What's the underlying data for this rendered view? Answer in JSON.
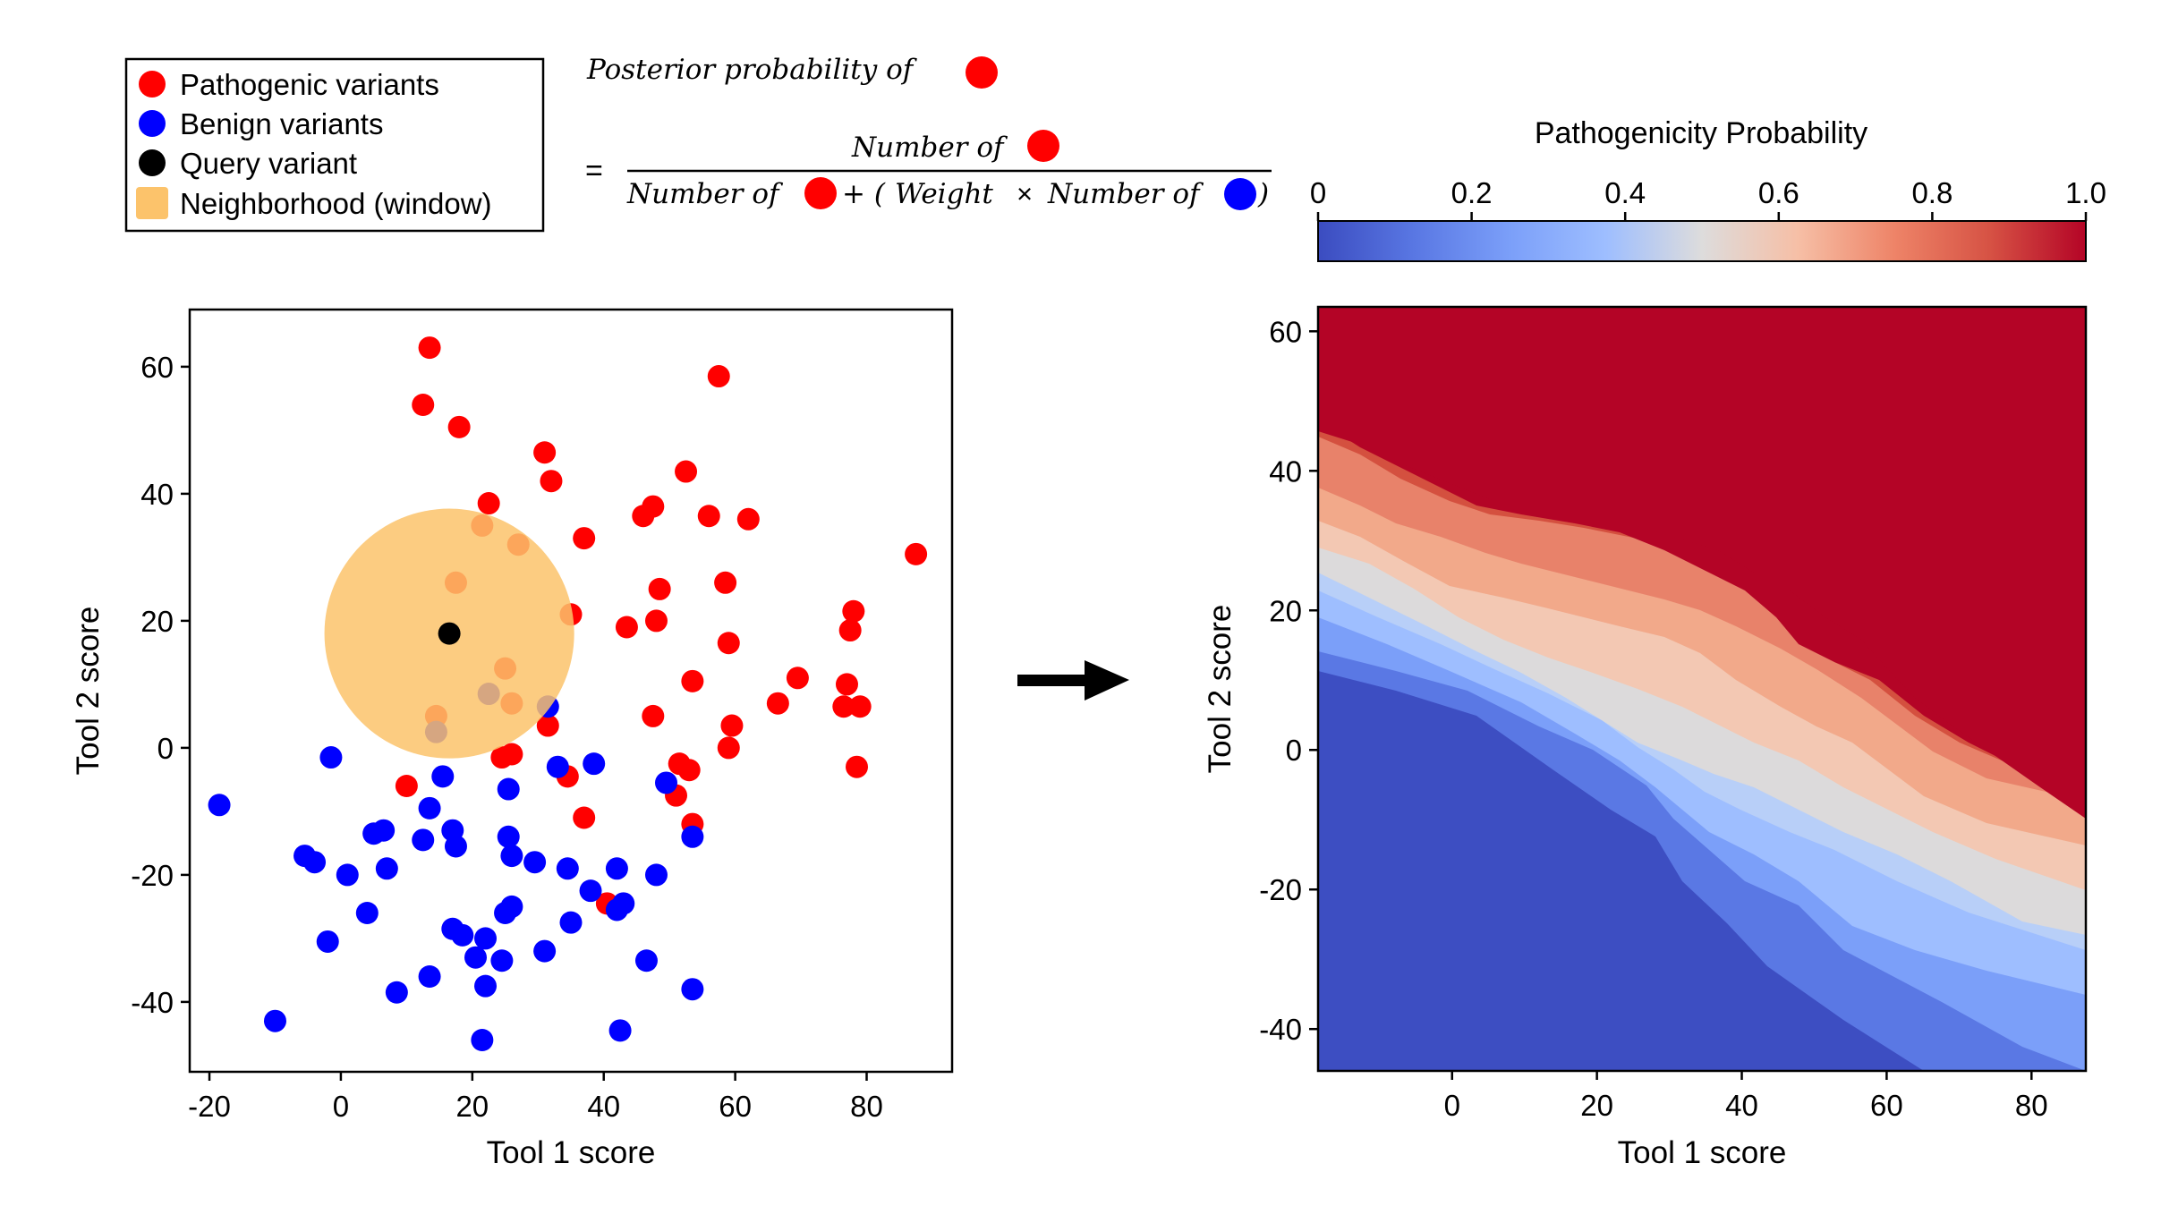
{
  "legend": {
    "items": [
      {
        "label": "Pathogenic variants",
        "color": "#ff0000"
      },
      {
        "label": "Benign variants",
        "color": "#0000ff"
      },
      {
        "label": "Query variant",
        "color": "#000000"
      },
      {
        "label": "Neighborhood (window)",
        "color": "#fcc36b"
      }
    ]
  },
  "formula": {
    "lhs": "Posterior probability of",
    "equals": "=",
    "numerator": "Number of",
    "denominator_a": "Number of",
    "denominator_plus": "+ (",
    "denominator_weight": "Weight",
    "denominator_times": "×",
    "denominator_b": "Number of",
    "denominator_close": ")"
  },
  "colorbar": {
    "title": "Pathogenicity Probability",
    "ticks": [
      "0",
      "0.2",
      "0.4",
      "0.6",
      "0.8",
      "1.0"
    ],
    "colormap": "coolwarm"
  },
  "chart_data": [
    {
      "type": "scatter",
      "xlabel": "Tool 1 score",
      "ylabel": "Tool 2 score",
      "xlim": [
        -23,
        93
      ],
      "ylim": [
        -51,
        69
      ],
      "xticks": [
        -20,
        0,
        20,
        40,
        60,
        80
      ],
      "yticks": [
        -40,
        -20,
        0,
        20,
        40,
        60
      ],
      "tick_labels_x": [
        "-20",
        "0",
        "20",
        "40",
        "60",
        "80"
      ],
      "tick_labels_y": [
        "-40",
        "-20",
        "0",
        "20",
        "40",
        "60"
      ],
      "neighborhood": {
        "center": [
          16.5,
          18
        ],
        "radius": 19,
        "color": "#fcc36b"
      },
      "query": {
        "x": 16.5,
        "y": 18,
        "color": "#000000"
      },
      "series": [
        {
          "name": "Pathogenic variants",
          "color": "#ff0000",
          "points": [
            [
              13.5,
              63
            ],
            [
              12.5,
              54
            ],
            [
              18,
              50.5
            ],
            [
              31,
              46.5
            ],
            [
              32,
              42
            ],
            [
              22.5,
              38.5
            ],
            [
              21.5,
              35
            ],
            [
              27,
              32
            ],
            [
              37,
              33
            ],
            [
              17.5,
              26
            ],
            [
              35,
              21
            ],
            [
              14.5,
              5
            ],
            [
              25,
              12.5
            ],
            [
              26,
              7
            ],
            [
              31.5,
              3.5
            ],
            [
              10,
              -6
            ],
            [
              24.5,
              -1.5
            ],
            [
              26,
              -1
            ],
            [
              34.5,
              -4.5
            ],
            [
              37,
              -11
            ],
            [
              40.5,
              -24.5
            ],
            [
              46,
              36.5
            ],
            [
              47.5,
              38
            ],
            [
              56,
              36.5
            ],
            [
              62,
              36
            ],
            [
              57.5,
              58.5
            ],
            [
              52.5,
              43.5
            ],
            [
              87.5,
              30.5
            ],
            [
              48.5,
              25
            ],
            [
              58.5,
              26
            ],
            [
              43.5,
              19
            ],
            [
              48,
              20
            ],
            [
              59,
              16.5
            ],
            [
              78,
              21.5
            ],
            [
              77.5,
              18.5
            ],
            [
              69.5,
              11
            ],
            [
              66.5,
              7
            ],
            [
              77,
              10
            ],
            [
              76.5,
              6.5
            ],
            [
              79,
              6.5
            ],
            [
              53.5,
              10.5
            ],
            [
              47.5,
              5
            ],
            [
              59.5,
              3.5
            ],
            [
              59,
              0
            ],
            [
              51.5,
              -2.5
            ],
            [
              53,
              -3.5
            ],
            [
              51,
              -7.5
            ],
            [
              53.5,
              -12
            ],
            [
              78.5,
              -3
            ]
          ]
        },
        {
          "name": "Benign variants",
          "color": "#0000ff",
          "points": [
            [
              14.5,
              2.5
            ],
            [
              22.5,
              8.5
            ],
            [
              31.5,
              6.5
            ],
            [
              -1.5,
              -1.5
            ],
            [
              15.5,
              -4.5
            ],
            [
              33,
              -3
            ],
            [
              38.5,
              -2.5
            ],
            [
              49.5,
              -5.5
            ],
            [
              25.5,
              -6.5
            ],
            [
              -18.5,
              -9
            ],
            [
              13.5,
              -9.5
            ],
            [
              -5.5,
              -17
            ],
            [
              -4,
              -18
            ],
            [
              1,
              -20
            ],
            [
              5,
              -13.5
            ],
            [
              6.5,
              -13
            ],
            [
              12.5,
              -14.5
            ],
            [
              17,
              -13
            ],
            [
              17.5,
              -15.5
            ],
            [
              7,
              -19
            ],
            [
              25.5,
              -14
            ],
            [
              26,
              -17
            ],
            [
              29.5,
              -18
            ],
            [
              34.5,
              -19
            ],
            [
              42,
              -19
            ],
            [
              48,
              -20
            ],
            [
              53.5,
              -14
            ],
            [
              38,
              -22.5
            ],
            [
              43,
              -24.5
            ],
            [
              42,
              -25.5
            ],
            [
              4,
              -26
            ],
            [
              26,
              -25
            ],
            [
              25,
              -26
            ],
            [
              -2,
              -30.5
            ],
            [
              17,
              -28.5
            ],
            [
              18.5,
              -29.5
            ],
            [
              22,
              -30
            ],
            [
              20.5,
              -33
            ],
            [
              24.5,
              -33.5
            ],
            [
              31,
              -32
            ],
            [
              35,
              -27.5
            ],
            [
              46.5,
              -33.5
            ],
            [
              13.5,
              -36
            ],
            [
              8.5,
              -38.5
            ],
            [
              22,
              -37.5
            ],
            [
              53.5,
              -38
            ],
            [
              -10,
              -43
            ],
            [
              21.5,
              -46
            ],
            [
              42.5,
              -44.5
            ]
          ]
        }
      ]
    },
    {
      "type": "heatmap",
      "xlabel": "Tool 1 score",
      "ylabel": "Tool 2 score",
      "xlim": [
        -18.5,
        87.5
      ],
      "ylim": [
        -46,
        63.5
      ],
      "xticks": [
        0,
        20,
        40,
        60,
        80
      ],
      "yticks": [
        -40,
        -20,
        0,
        20,
        40,
        60
      ],
      "tick_labels_x": [
        "0",
        "20",
        "40",
        "60",
        "80"
      ],
      "tick_labels_y": [
        "-40",
        "-20",
        "0",
        "20",
        "40",
        "60"
      ],
      "value_range": [
        0,
        1
      ],
      "note": "Pathogenicity probability surface: high (red) toward upper-right, low (blue) toward lower-left"
    }
  ]
}
